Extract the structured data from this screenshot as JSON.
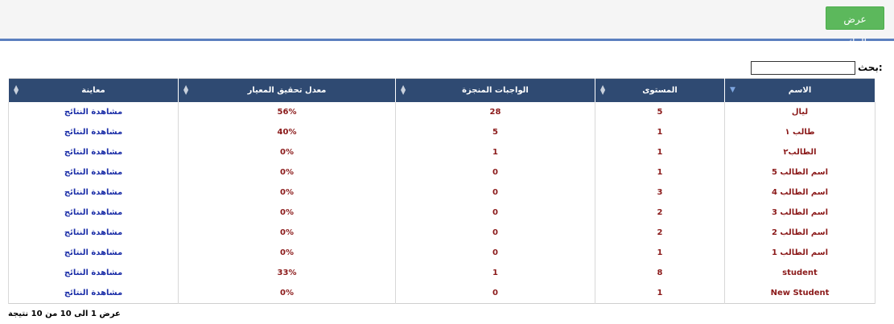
{
  "toolbar": {
    "show_results_label": "عرض النتائج"
  },
  "search": {
    "label": "بحث:",
    "value": ""
  },
  "table": {
    "headers": {
      "name": "الاسم",
      "level": "المستوى",
      "homework": "الواجبات المنجزة",
      "rate": "معدل تحقيق المعيار",
      "preview": "معاينة"
    },
    "rows": [
      {
        "name": "ليال",
        "level": "5",
        "homework": "28",
        "rate": "56%",
        "preview": "مشاهدة النتائج"
      },
      {
        "name": "طالب ١",
        "level": "1",
        "homework": "5",
        "rate": "40%",
        "preview": "مشاهدة النتائج"
      },
      {
        "name": "الطالب٢",
        "level": "1",
        "homework": "1",
        "rate": "0%",
        "preview": "مشاهدة النتائج"
      },
      {
        "name": "اسم الطالب 5",
        "level": "1",
        "homework": "0",
        "rate": "0%",
        "preview": "مشاهدة النتائج"
      },
      {
        "name": "اسم الطالب 4",
        "level": "3",
        "homework": "0",
        "rate": "0%",
        "preview": "مشاهدة النتائج"
      },
      {
        "name": "اسم الطالب 3",
        "level": "2",
        "homework": "0",
        "rate": "0%",
        "preview": "مشاهدة النتائج"
      },
      {
        "name": "اسم الطالب 2",
        "level": "2",
        "homework": "0",
        "rate": "0%",
        "preview": "مشاهدة النتائج"
      },
      {
        "name": "اسم الطالب 1",
        "level": "1",
        "homework": "0",
        "rate": "0%",
        "preview": "مشاهدة النتائج"
      },
      {
        "name": "student",
        "level": "8",
        "homework": "1",
        "rate": "33%",
        "preview": "مشاهدة النتائج"
      },
      {
        "name": "New Student",
        "level": "1",
        "homework": "0",
        "rate": "0%",
        "preview": "مشاهدة النتائج"
      }
    ]
  },
  "footer": {
    "info": "عرض 1 الى 10 من 10 نتيجة"
  },
  "colors": {
    "header_bg": "#2f4a72",
    "button_green": "#5cb85c",
    "accent_blue": "#5b7fbf",
    "value_red": "#8b1a1a",
    "link_blue": "#1c2fa8"
  }
}
